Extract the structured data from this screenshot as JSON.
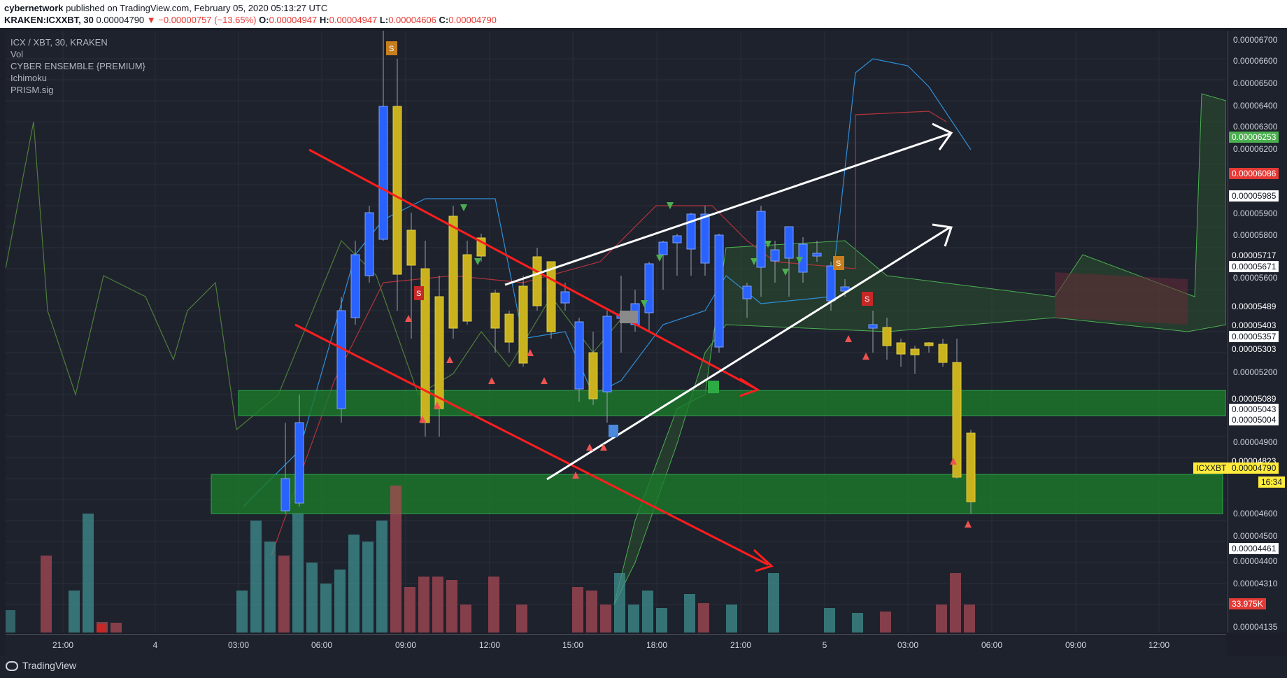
{
  "header": {
    "publisher": "cybernetwork",
    "published_text": " published on TradingView.com, February 05, 2020 05:13:27 UTC",
    "symbol": "KRAKEN:ICXXBT, 30",
    "last_price": " 0.00004790",
    "change": "▼ −0.00000757 (−13.65%)",
    "o_label": " O:",
    "o_value": "0.00004947",
    "h_label": " H:",
    "h_value": "0.00004947",
    "l_label": " L:",
    "l_value": "0.00004606",
    "c_label": " C:",
    "c_value": "0.00004790"
  },
  "legend": [
    "ICX / XBT, 30, KRAKEN",
    "Vol",
    "CYBER ENSEMBLE {PREMIUM}",
    "Ichimoku",
    "PRISM.sig"
  ],
  "price_axis": [
    "0.00006700",
    "0.00006600",
    "0.00006500",
    "0.00006400",
    "0.00006300",
    "0.00006200",
    "0.00005900",
    "0.00005800",
    "0.00005600",
    "0.00005200",
    "0.00004900",
    "0.00004600",
    "0.00004500",
    "0.00004400",
    "0.00004310",
    "0.00004135"
  ],
  "price_badges": [
    {
      "text": "0.00006253",
      "bg": "#4caf50",
      "fg": "#ffffff"
    },
    {
      "text": "0.00006086",
      "bg": "#e53935",
      "fg": "#ffffff"
    },
    {
      "text": "0.00005985",
      "bg": "#ffffff",
      "fg": "#131722"
    },
    {
      "text": "0.00005717",
      "bg": "#1e222d",
      "fg": "#d1d4dc"
    },
    {
      "text": "0.00005671",
      "bg": "#ffffff",
      "fg": "#131722"
    },
    {
      "text": "0.00005489",
      "bg": "#1e222d",
      "fg": "#d1d4dc"
    },
    {
      "text": "0.00005403",
      "bg": "#1e222d",
      "fg": "#d1d4dc"
    },
    {
      "text": "0.00005357",
      "bg": "#ffffff",
      "fg": "#131722"
    },
    {
      "text": "0.00005303",
      "bg": "#1e222d",
      "fg": "#d1d4dc"
    },
    {
      "text": "0.00005089",
      "bg": "#1e222d",
      "fg": "#d1d4dc"
    },
    {
      "text": "0.00005043",
      "bg": "#ffffff",
      "fg": "#131722"
    },
    {
      "text": "0.00005004",
      "bg": "#ffffff",
      "fg": "#131722"
    },
    {
      "text": "0.00004823",
      "bg": "#1e222d",
      "fg": "#d1d4dc"
    },
    {
      "text": "0.00004790",
      "bg": "#ffeb3b",
      "fg": "#131722"
    },
    {
      "text": "16:34",
      "bg": "#ffeb3b",
      "fg": "#131722"
    },
    {
      "text": "0.00004461",
      "bg": "#ffffff",
      "fg": "#131722"
    },
    {
      "text": "33.975K",
      "bg": "#e53935",
      "fg": "#ffffff"
    }
  ],
  "symbol_tag": "ICXXBT",
  "time_axis": [
    "21:00",
    "4",
    "03:00",
    "06:00",
    "09:00",
    "12:00",
    "15:00",
    "18:00",
    "21:00",
    "5",
    "03:00",
    "06:00",
    "09:00",
    "12:00"
  ],
  "footer": {
    "logo": "TradingView"
  },
  "colors": {
    "background": "#1e222d",
    "bull_candle": "#2962ff",
    "bear_candle": "#c9b21d",
    "zone": "#1b7a2a",
    "trend_red": "#ff1e1e",
    "trend_white": "#ffffff"
  }
}
